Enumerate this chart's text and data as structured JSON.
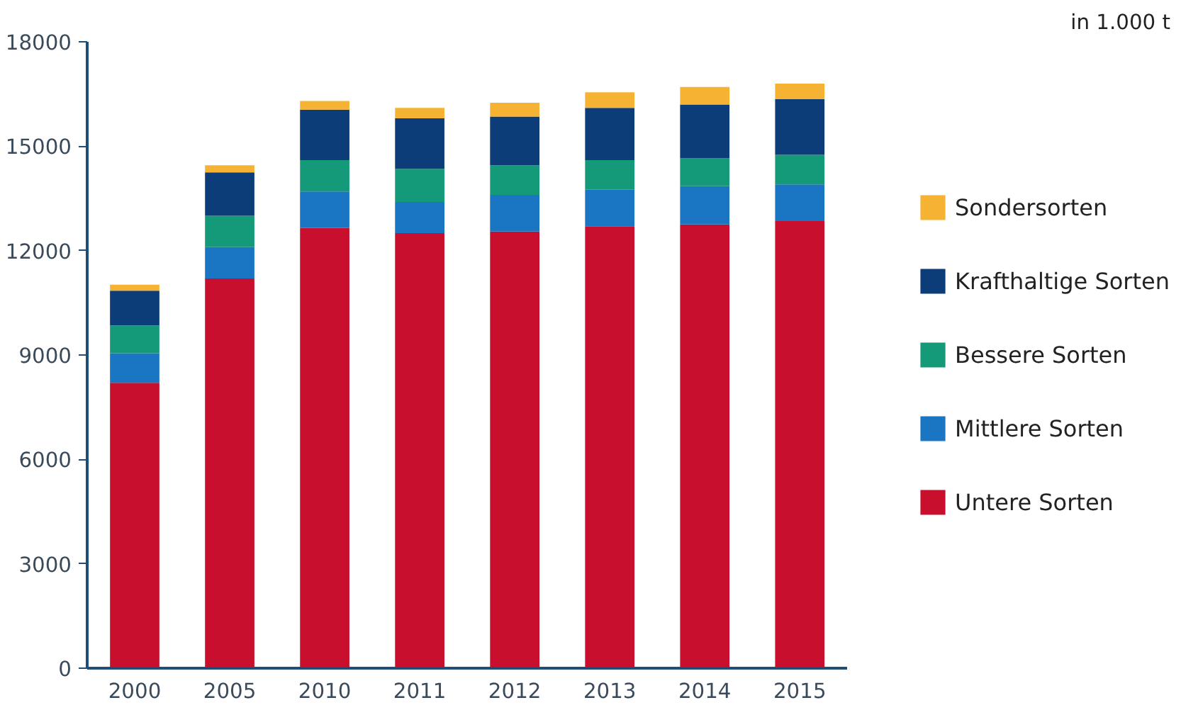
{
  "chart_data": {
    "type": "bar",
    "stacked": true,
    "categories": [
      "2000",
      "2005",
      "2010",
      "2011",
      "2012",
      "2013",
      "2014",
      "2015"
    ],
    "series": [
      {
        "name": "Untere Sorten",
        "color": "#c8102e",
        "values": [
          8200,
          11200,
          12650,
          12500,
          12550,
          12700,
          12750,
          12850
        ]
      },
      {
        "name": "Mittlere Sorten",
        "color": "#1a75c2",
        "values": [
          850,
          900,
          1050,
          900,
          1050,
          1050,
          1100,
          1050
        ]
      },
      {
        "name": "Bessere Sorten",
        "color": "#149a78",
        "values": [
          800,
          900,
          900,
          950,
          850,
          850,
          800,
          850
        ]
      },
      {
        "name": "Krafthaltige Sorten",
        "color": "#0d3d78",
        "values": [
          1000,
          1250,
          1450,
          1450,
          1400,
          1500,
          1550,
          1600
        ]
      },
      {
        "name": "Sondersorten",
        "color": "#f6b333",
        "values": [
          170,
          200,
          250,
          300,
          400,
          450,
          500,
          450
        ]
      }
    ],
    "ylim": [
      0,
      18000
    ],
    "yticks": [
      0,
      3000,
      6000,
      9000,
      12000,
      15000,
      18000
    ],
    "grid": false,
    "legend": "right",
    "annotations": [
      "in 1.000 t"
    ]
  }
}
